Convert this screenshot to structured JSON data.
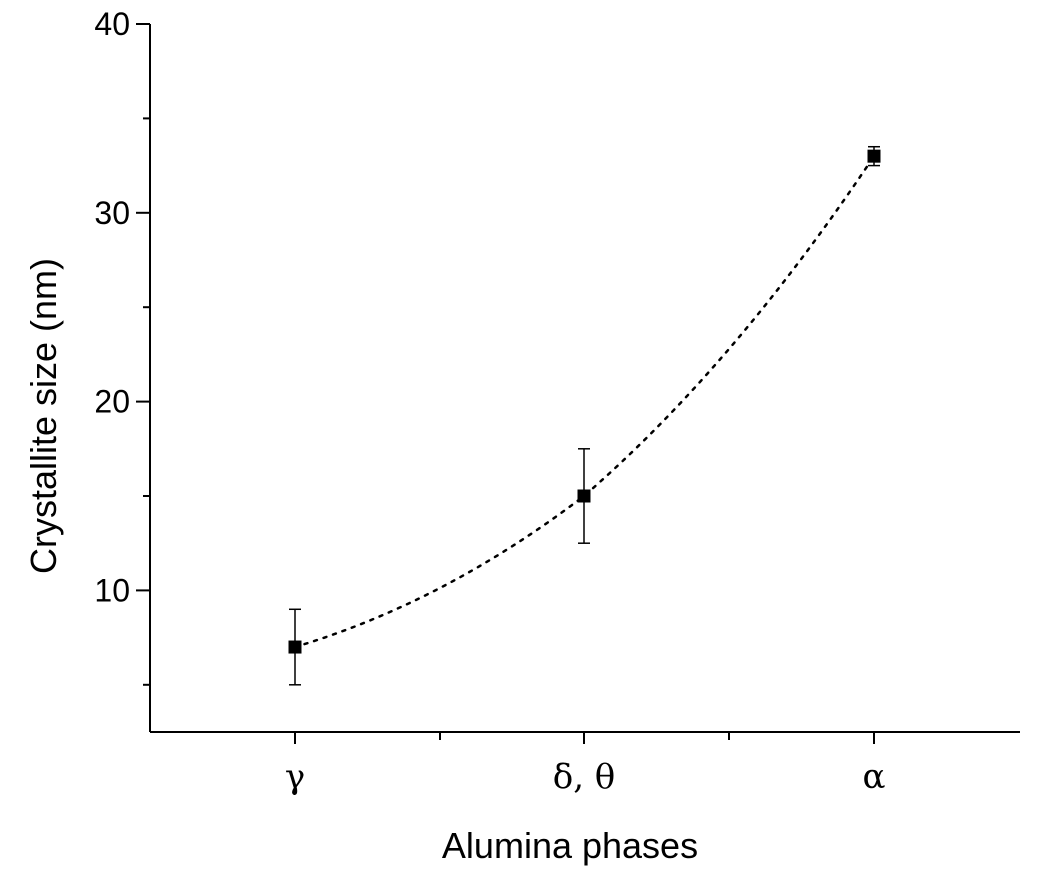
{
  "chart_data": {
    "type": "scatter",
    "categories": [
      "γ",
      "δ, θ",
      "α"
    ],
    "series": [
      {
        "values": [
          7,
          15,
          33
        ],
        "error": [
          2,
          2.5,
          0.5
        ],
        "connector": "dotted"
      }
    ],
    "xlabel": "Alumina phases",
    "ylabel": "Crystallite size (nm)",
    "ylim": [
      2.5,
      40
    ],
    "yticks": [
      10,
      20,
      30,
      40
    ],
    "grid": false,
    "colors": {
      "marker": "#000000",
      "axis": "#000000"
    }
  }
}
